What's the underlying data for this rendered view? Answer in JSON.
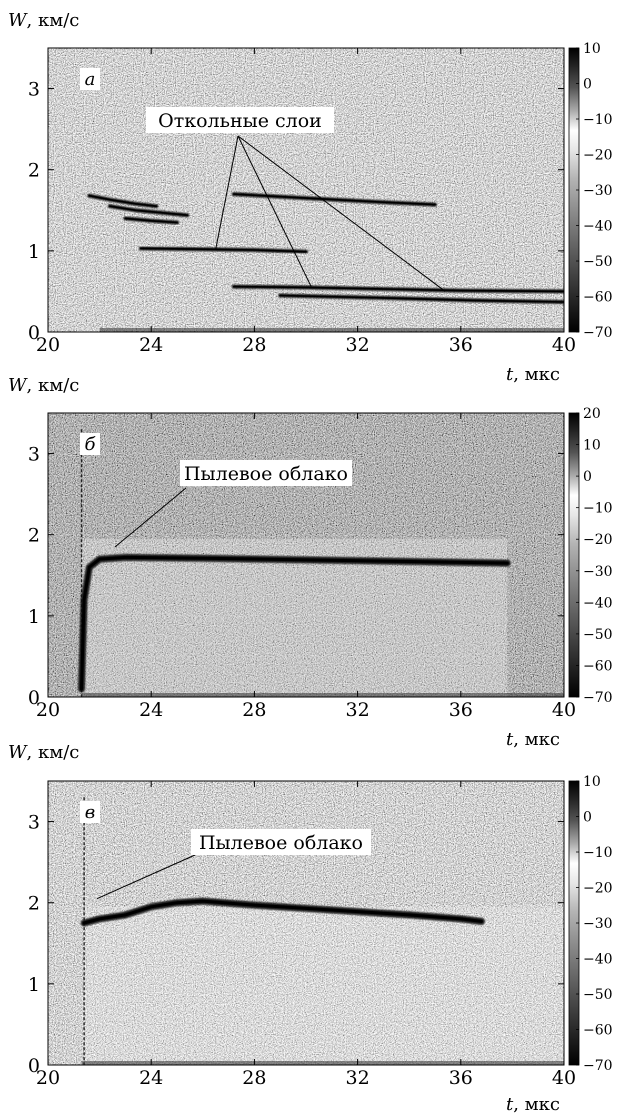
{
  "figure": {
    "panels": [
      {
        "id": "a",
        "letter": "а",
        "ylabel_var": "W",
        "ylabel_unit": ", км/с",
        "xlabel_var": "t",
        "xlabel_unit": ", мкс",
        "annotation": "Откольные слои",
        "colorbar_ticks": [
          "10",
          "0",
          "−10",
          "−20",
          "−30",
          "−40",
          "−50",
          "−60",
          "−70"
        ],
        "colorbar_range": [
          -70,
          10
        ]
      },
      {
        "id": "b",
        "letter": "б",
        "ylabel_var": "W",
        "ylabel_unit": ", км/с",
        "xlabel_var": "t",
        "xlabel_unit": ", мкс",
        "annotation": "Пылевое облако",
        "colorbar_ticks": [
          "20",
          "10",
          "0",
          "−10",
          "−20",
          "−30",
          "−40",
          "−50",
          "−60",
          "−70"
        ],
        "colorbar_range": [
          -70,
          20
        ]
      },
      {
        "id": "c",
        "letter": "в",
        "ylabel_var": "W",
        "ylabel_unit": ", км/с",
        "xlabel_var": "t",
        "xlabel_unit": ", мкс",
        "annotation": "Пылевое облако",
        "colorbar_ticks": [
          "10",
          "0",
          "−10",
          "−20",
          "−30",
          "−40",
          "−50",
          "−60",
          "−70"
        ],
        "colorbar_range": [
          -70,
          10
        ]
      }
    ]
  },
  "chart_data": [
    {
      "type": "heatmap",
      "panel": "а",
      "xlabel": "t, мкс",
      "ylabel": "W, км/с",
      "xlim": [
        20,
        40
      ],
      "ylim": [
        0,
        3.5
      ],
      "xticks": [
        20,
        24,
        28,
        32,
        36,
        40
      ],
      "yticks": [
        0,
        1,
        2,
        3
      ],
      "grid": true,
      "colorbar": {
        "min": -70,
        "max": 10,
        "ticks": [
          10,
          0,
          -10,
          -20,
          -30,
          -40,
          -50,
          -60,
          -70
        ]
      },
      "annotations": [
        {
          "text": "Откольные слои",
          "points_to": [
            [
              26.5,
              1.02
            ],
            [
              30.2,
              0.56
            ],
            [
              35.4,
              0.5
            ]
          ]
        }
      ],
      "traces": [
        {
          "x": [
            21.6,
            22.4,
            23.4,
            24.2
          ],
          "y": [
            1.68,
            1.63,
            1.58,
            1.55
          ]
        },
        {
          "x": [
            22.4,
            23.4,
            24.4,
            25.4
          ],
          "y": [
            1.55,
            1.5,
            1.47,
            1.44
          ]
        },
        {
          "x": [
            23.0,
            24.0,
            25.0
          ],
          "y": [
            1.4,
            1.37,
            1.35
          ]
        },
        {
          "x": [
            27.2,
            30.0,
            33.0,
            35.0
          ],
          "y": [
            1.7,
            1.65,
            1.6,
            1.57
          ]
        },
        {
          "x": [
            23.6,
            26.0,
            28.0,
            30.0
          ],
          "y": [
            1.03,
            1.02,
            1.01,
            0.99
          ]
        },
        {
          "x": [
            27.2,
            30.0,
            33.0,
            36.0,
            40.0
          ],
          "y": [
            0.56,
            0.55,
            0.53,
            0.51,
            0.5
          ]
        },
        {
          "x": [
            29.0,
            33.0,
            36.5,
            40.0
          ],
          "y": [
            0.45,
            0.42,
            0.39,
            0.37
          ]
        }
      ]
    },
    {
      "type": "heatmap",
      "panel": "б",
      "xlabel": "t, мкс",
      "ylabel": "W, км/с",
      "xlim": [
        20,
        40
      ],
      "ylim": [
        0,
        3.5
      ],
      "xticks": [
        20,
        24,
        28,
        32,
        36,
        40
      ],
      "yticks": [
        0,
        1,
        2,
        3
      ],
      "grid": true,
      "colorbar": {
        "min": -70,
        "max": 20,
        "ticks": [
          20,
          10,
          0,
          -10,
          -20,
          -30,
          -40,
          -50,
          -60,
          -70
        ]
      },
      "annotations": [
        {
          "text": "Пылевое облако",
          "points_to": [
            [
              22.6,
              1.85
            ]
          ]
        }
      ],
      "traces": [
        {
          "x": [
            21.3,
            21.4,
            21.6,
            22.0,
            23.0,
            26.0,
            30.0,
            34.0,
            37.8
          ],
          "y": [
            0.1,
            1.2,
            1.6,
            1.7,
            1.72,
            1.71,
            1.69,
            1.67,
            1.65
          ]
        }
      ]
    },
    {
      "type": "heatmap",
      "panel": "в",
      "xlabel": "t, мкс",
      "ylabel": "W, км/с",
      "xlim": [
        20,
        40
      ],
      "ylim": [
        0,
        3.5
      ],
      "xticks": [
        20,
        24,
        28,
        32,
        36,
        40
      ],
      "yticks": [
        0,
        1,
        2,
        3
      ],
      "grid": true,
      "colorbar": {
        "min": -70,
        "max": 10,
        "ticks": [
          10,
          0,
          -10,
          -20,
          -30,
          -40,
          -50,
          -60,
          -70
        ]
      },
      "annotations": [
        {
          "text": "Пылевое облако",
          "points_to": [
            [
              21.9,
              2.05
            ]
          ]
        }
      ],
      "traces": [
        {
          "x": [
            21.4,
            22.0,
            23.0,
            24.0,
            25.0,
            26.0,
            28.0,
            30.0,
            32.0,
            34.0,
            36.0,
            36.8
          ],
          "y": [
            1.75,
            1.8,
            1.85,
            1.95,
            2.0,
            2.02,
            1.97,
            1.93,
            1.89,
            1.85,
            1.8,
            1.77
          ]
        }
      ]
    }
  ]
}
